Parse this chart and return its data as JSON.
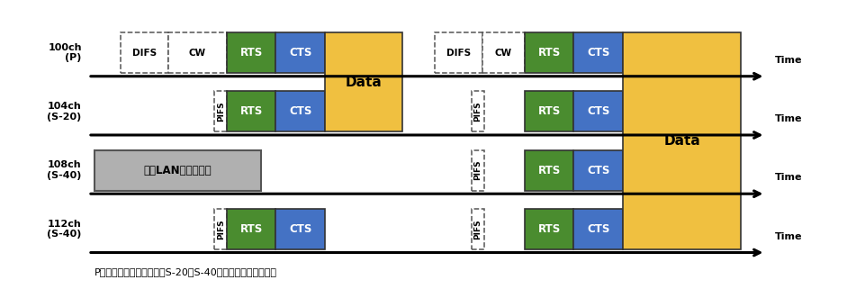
{
  "figure_width": 9.62,
  "figure_height": 3.21,
  "dpi": 100,
  "bg_color": "#ffffff",
  "color_green": "#4a8c2f",
  "color_blue": "#4472c4",
  "color_yellow": "#f0c040",
  "color_gray": "#b0b0b0",
  "bottom_label": "P：プライマリチャネル，S-20，S-40：セカンダリチャネル",
  "wlan_label": "無線LAN機器の通信",
  "ch_labels": [
    "100ch\n(P)",
    "104ch\n(S-20)",
    "108ch\n(S-40)",
    "112ch\n(S-40)"
  ]
}
